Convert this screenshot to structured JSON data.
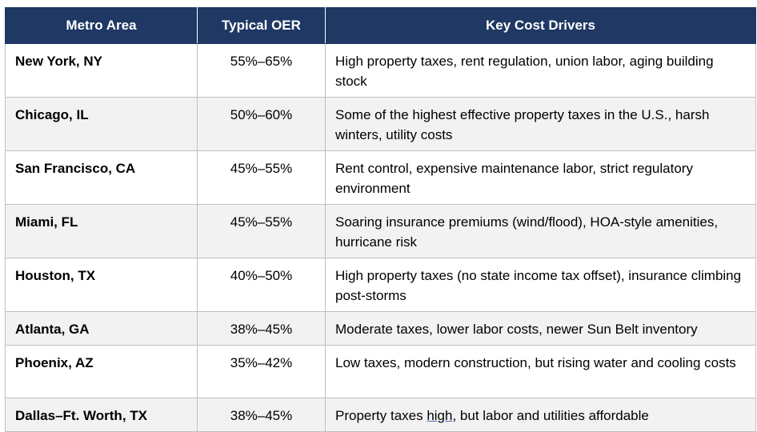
{
  "table": {
    "headers": [
      "Metro Area",
      "Typical OER",
      "Key Cost Drivers"
    ],
    "rows": [
      {
        "metro": "New York, NY",
        "oer": "55%–65%",
        "drivers": "High property taxes, rent regulation, union labor, aging building stock"
      },
      {
        "metro": "Chicago, IL",
        "oer": "50%–60%",
        "drivers": "Some of the highest effective property taxes in the U.S., harsh winters, utility costs"
      },
      {
        "metro": "San Francisco, CA",
        "oer": "45%–55%",
        "drivers": "Rent control, expensive maintenance labor, strict regulatory environment"
      },
      {
        "metro": "Miami, FL",
        "oer": "45%–55%",
        "drivers": "Soaring insurance premiums (wind/flood), HOA-style amenities, hurricane risk"
      },
      {
        "metro": "Houston, TX",
        "oer": "40%–50%",
        "drivers": "High property taxes (no state income tax offset), insurance climbing post-storms"
      },
      {
        "metro": "Atlanta, GA",
        "oer": "38%–45%",
        "drivers": "Moderate taxes, lower labor costs, newer Sun Belt inventory"
      },
      {
        "metro": "Phoenix, AZ",
        "oer": "35%–42%",
        "drivers": "Low taxes, modern construction, but rising water and cooling costs"
      },
      {
        "metro": "Dallas–Ft. Worth, TX",
        "oer": "38%–45%",
        "drivers_before": "Property taxes ",
        "drivers_underlined": "high",
        "drivers_after": ", but labor and utilities affordable"
      }
    ]
  },
  "colors": {
    "header_background": "#1f3864",
    "header_text": "#ffffff",
    "alt_row_background": "#f2f2f2",
    "border": "#bfbfbf"
  }
}
